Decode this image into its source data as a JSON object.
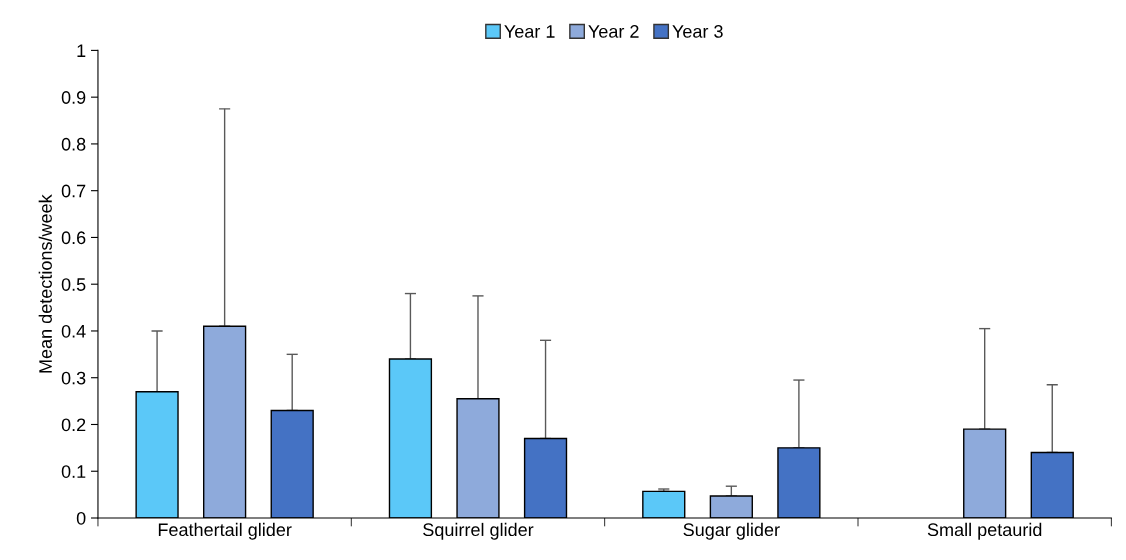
{
  "chart_data": {
    "type": "bar",
    "ylabel": "Mean detections/week",
    "categories": [
      "Feathertail glider",
      "Squirrel glider",
      "Sugar glider",
      "Small petaurid"
    ],
    "series": [
      {
        "name": "Year 1",
        "color": "#5bc8f8",
        "values": [
          0.27,
          0.34,
          0.057,
          0
        ],
        "errors": [
          [
            0.27,
            0.4
          ],
          [
            0.34,
            0.48
          ],
          [
            0.057,
            0.062
          ],
          null
        ]
      },
      {
        "name": "Year 2",
        "color": "#8eaadb",
        "values": [
          0.41,
          0.255,
          0.047,
          0.19
        ],
        "errors": [
          [
            0.41,
            0.875
          ],
          [
            0.255,
            0.475
          ],
          [
            0.047,
            0.068
          ],
          [
            0.19,
            0.405
          ]
        ]
      },
      {
        "name": "Year 3",
        "color": "#4472c4",
        "values": [
          0.23,
          0.17,
          0.15,
          0.14
        ],
        "errors": [
          [
            0.23,
            0.35
          ],
          [
            0.17,
            0.38
          ],
          [
            0.15,
            0.295
          ],
          [
            0.14,
            0.285
          ]
        ]
      }
    ],
    "ylim": [
      0,
      1
    ],
    "yticks": [
      0,
      0.1,
      0.2,
      0.3,
      0.4,
      0.5,
      0.6,
      0.7,
      0.8,
      0.9,
      1
    ],
    "grid": false,
    "legend": "top"
  }
}
